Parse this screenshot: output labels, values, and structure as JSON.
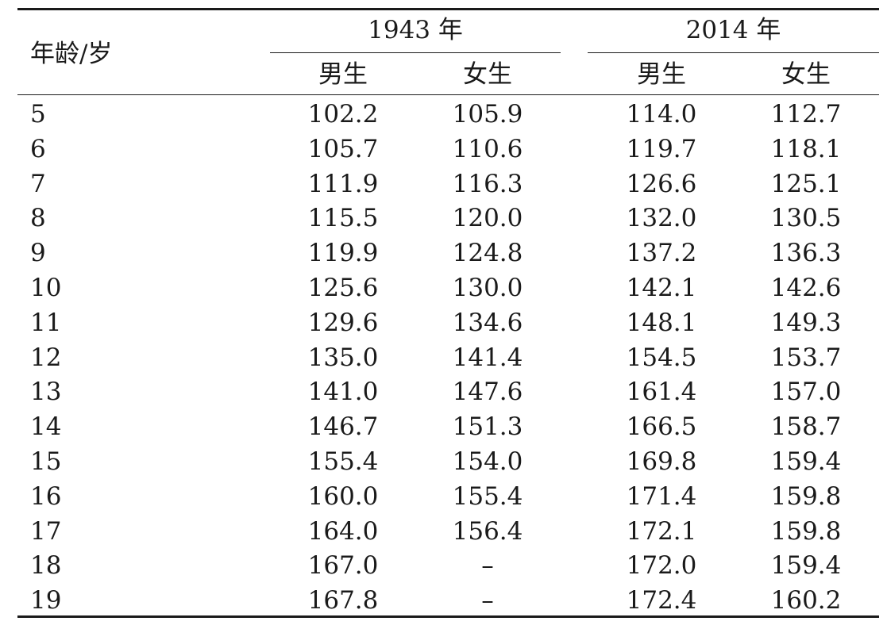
{
  "table": {
    "age_header": "年龄/岁",
    "groups": [
      {
        "label": "1943 年",
        "subs": [
          "男生",
          "女生"
        ]
      },
      {
        "label": "2014 年",
        "subs": [
          "男生",
          "女生"
        ]
      }
    ],
    "rows": [
      {
        "age": "5",
        "cells": [
          "102.2",
          "105.9",
          "114.0",
          "112.7"
        ]
      },
      {
        "age": "6",
        "cells": [
          "105.7",
          "110.6",
          "119.7",
          "118.1"
        ]
      },
      {
        "age": "7",
        "cells": [
          "111.9",
          "116.3",
          "126.6",
          "125.1"
        ]
      },
      {
        "age": "8",
        "cells": [
          "115.5",
          "120.0",
          "132.0",
          "130.5"
        ]
      },
      {
        "age": "9",
        "cells": [
          "119.9",
          "124.8",
          "137.2",
          "136.3"
        ]
      },
      {
        "age": "10",
        "cells": [
          "125.6",
          "130.0",
          "142.1",
          "142.6"
        ]
      },
      {
        "age": "11",
        "cells": [
          "129.6",
          "134.6",
          "148.1",
          "149.3"
        ]
      },
      {
        "age": "12",
        "cells": [
          "135.0",
          "141.4",
          "154.5",
          "153.7"
        ]
      },
      {
        "age": "13",
        "cells": [
          "141.0",
          "147.6",
          "161.4",
          "157.0"
        ]
      },
      {
        "age": "14",
        "cells": [
          "146.7",
          "151.3",
          "166.5",
          "158.7"
        ]
      },
      {
        "age": "15",
        "cells": [
          "155.4",
          "154.0",
          "169.8",
          "159.4"
        ]
      },
      {
        "age": "16",
        "cells": [
          "160.0",
          "155.4",
          "171.4",
          "159.8"
        ]
      },
      {
        "age": "17",
        "cells": [
          "164.0",
          "156.4",
          "172.1",
          "159.8"
        ]
      },
      {
        "age": "18",
        "cells": [
          "167.0",
          "–",
          "172.0",
          "159.4"
        ]
      },
      {
        "age": "19",
        "cells": [
          "167.8",
          "–",
          "172.4",
          "160.2"
        ]
      }
    ]
  }
}
